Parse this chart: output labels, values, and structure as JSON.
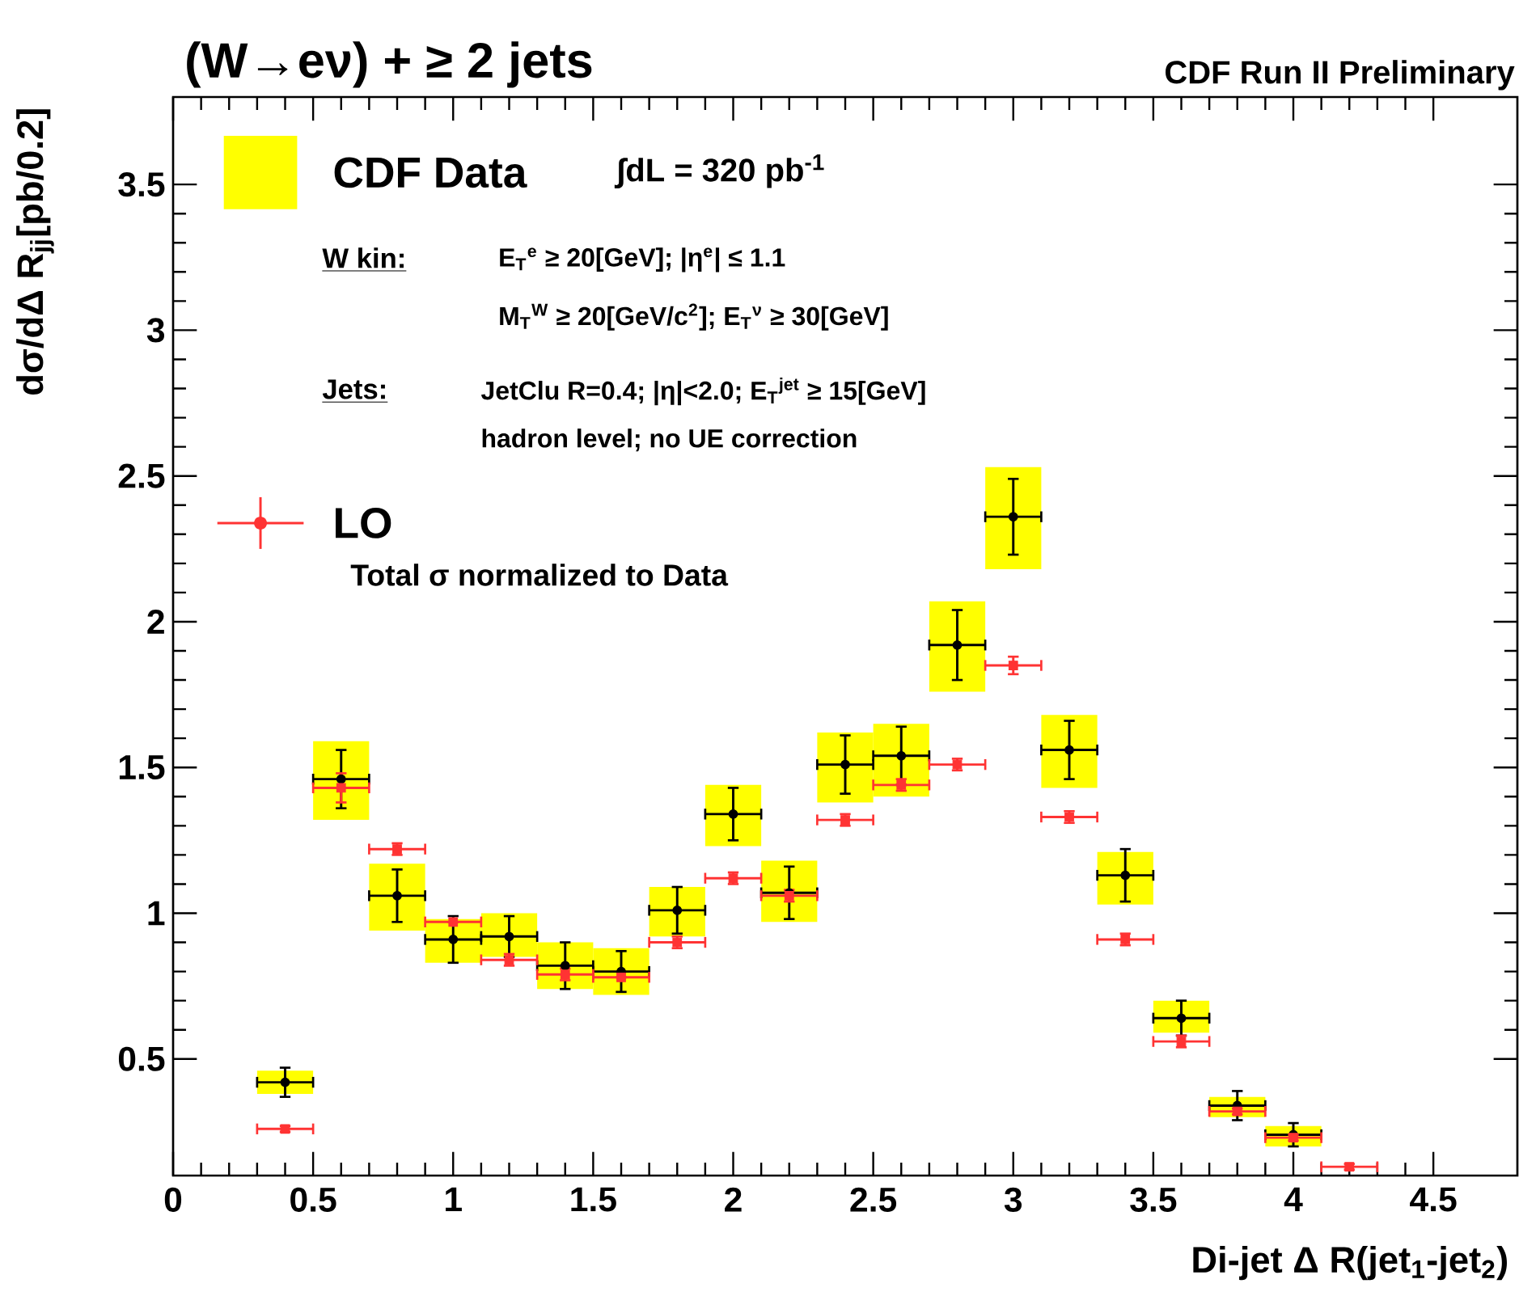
{
  "chart_data": {
    "type": "scatter",
    "title": "(W→eν) + ≥ 2 jets",
    "xlabel": "Di-jet Δ R(jet$_{1}$-jet$_{2}$)",
    "ylabel": "dσ/dΔ R$_{jj}$[pb/0.2]",
    "xlim": [
      0,
      4.8
    ],
    "ylim": [
      0.1,
      3.8
    ],
    "xticks": [
      0,
      0.5,
      1,
      1.5,
      2,
      2.5,
      3,
      3.5,
      4,
      4.5
    ],
    "yticks": [
      0.5,
      1,
      1.5,
      2,
      2.5,
      3,
      3.5
    ],
    "legend": "top left",
    "series": [
      {
        "type": "bar",
        "name": "CDF Data",
        "color": "#ffff00",
        "x": [
          0.4,
          0.6,
          0.8,
          1.0,
          1.2,
          1.4,
          1.6,
          1.8,
          2.0,
          2.2,
          2.4,
          2.6,
          2.8,
          3.0,
          3.2,
          3.4,
          3.6,
          3.8,
          4.0
        ],
        "base": [
          0.38,
          1.32,
          0.94,
          0.83,
          0.85,
          0.74,
          0.72,
          0.92,
          1.23,
          0.97,
          1.38,
          1.4,
          1.76,
          2.18,
          1.43,
          1.03,
          0.59,
          0.3,
          0.2
        ],
        "values": [
          0.08,
          0.27,
          0.23,
          0.15,
          0.15,
          0.16,
          0.16,
          0.17,
          0.21,
          0.21,
          0.24,
          0.25,
          0.31,
          0.35,
          0.25,
          0.18,
          0.11,
          0.07,
          0.07
        ]
      },
      {
        "color": "#000000",
        "marker": "circle",
        "x": [
          0.4,
          0.6,
          0.8,
          1.0,
          1.2,
          1.4,
          1.6,
          1.8,
          2.0,
          2.2,
          2.4,
          2.6,
          2.8,
          3.0,
          3.2,
          3.4,
          3.6,
          3.8,
          4.0
        ],
        "values": [
          0.42,
          1.46,
          1.06,
          0.91,
          0.92,
          0.82,
          0.8,
          1.01,
          1.34,
          1.07,
          1.51,
          1.54,
          1.92,
          2.36,
          1.56,
          1.13,
          0.64,
          0.34,
          0.24
        ],
        "errors": [
          0.05,
          0.1,
          0.09,
          0.08,
          0.07,
          0.08,
          0.07,
          0.08,
          0.09,
          0.09,
          0.1,
          0.1,
          0.12,
          0.13,
          0.1,
          0.09,
          0.06,
          0.05,
          0.04
        ],
        "xerrors": [
          0.1,
          0.1,
          0.1,
          0.1,
          0.1,
          0.1,
          0.1,
          0.1,
          0.1,
          0.1,
          0.1,
          0.1,
          0.1,
          0.1,
          0.1,
          0.1,
          0.1,
          0.1,
          0.1
        ]
      },
      {
        "name": "LO",
        "color": "#ff3333",
        "marker": "square",
        "x": [
          0.4,
          0.6,
          0.8,
          1.0,
          1.2,
          1.4,
          1.6,
          1.8,
          2.0,
          2.2,
          2.4,
          2.6,
          2.8,
          3.0,
          3.2,
          3.4,
          3.6,
          3.8,
          4.0,
          4.2
        ],
        "values": [
          0.26,
          1.43,
          1.22,
          0.97,
          0.84,
          0.79,
          0.78,
          0.9,
          1.12,
          1.06,
          1.32,
          1.44,
          1.51,
          1.85,
          1.33,
          0.91,
          0.56,
          0.32,
          0.23,
          0.13
        ],
        "errors": [
          0.01,
          0.05,
          0.02,
          null,
          0.02,
          0.02,
          null,
          0.02,
          0.02,
          0.02,
          0.02,
          0.02,
          0.02,
          0.03,
          0.02,
          0.02,
          0.02,
          0.01,
          0.01,
          0.01
        ],
        "xerrors": [
          0.1,
          0.1,
          0.1,
          0.1,
          0.1,
          0.1,
          0.1,
          0.1,
          0.1,
          0.1,
          0.1,
          0.1,
          0.1,
          0.1,
          0.1,
          0.1,
          0.1,
          0.1,
          0.1,
          0.1
        ]
      }
    ],
    "annotations": [
      "CDF Run II Preliminary",
      "∫dL =  320 pb$^{-1}$",
      "W kin:",
      "E$_{T}$$^{e}$ ≥ 20[GeV]; |η$^{e}$| ≤ 1.1",
      "M$_{T}$$^{W}$ ≥ 20[GeV/c$^{2}$]; E$_{T}$$^{ν}$ ≥ 30[GeV]",
      "Jets:",
      "JetClu R=0.4; |η|<2.0; E$_{T}$$^{jet}$ ≥ 15[GeV]",
      "hadron level; no UE correction",
      "Total σ normalized to Data"
    ]
  }
}
